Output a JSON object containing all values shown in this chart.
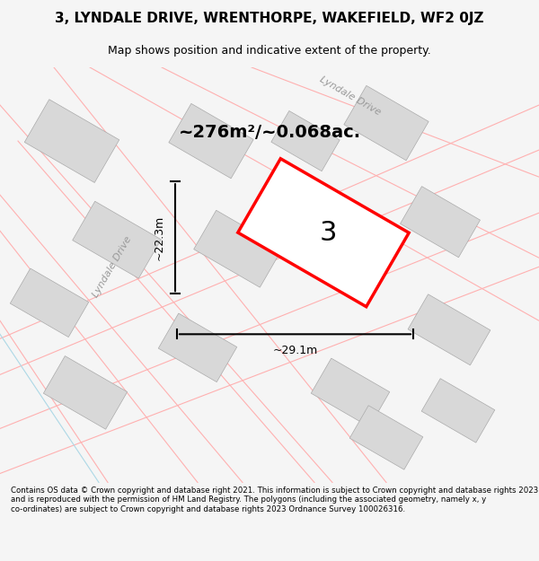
{
  "title": "3, LYNDALE DRIVE, WRENTHORPE, WAKEFIELD, WF2 0JZ",
  "subtitle": "Map shows position and indicative extent of the property.",
  "area_text": "~276m²/~0.068ac.",
  "label_number": "3",
  "dim_width": "~29.1m",
  "dim_height": "~22.3m",
  "street_name_diag1": "Lyndale Drive",
  "street_name_diag2": "Lyndale Drive",
  "footer": "Contains OS data © Crown copyright and database right 2021. This information is subject to Crown copyright and database rights 2023 and is reproduced with the permission of HM Land Registry. The polygons (including the associated geometry, namely x, y co-ordinates) are subject to Crown copyright and database rights 2023 Ordnance Survey 100026316.",
  "bg_color": "#f5f5f5",
  "map_bg": "#ffffff",
  "plot_color": "#ff0000",
  "plot_fill": "#ffffff",
  "building_color": "#d8d8d8",
  "road_line_color": "#ffb0b0",
  "road_line_color2": "#add8e6",
  "dim_color": "#000000",
  "text_color": "#000000"
}
